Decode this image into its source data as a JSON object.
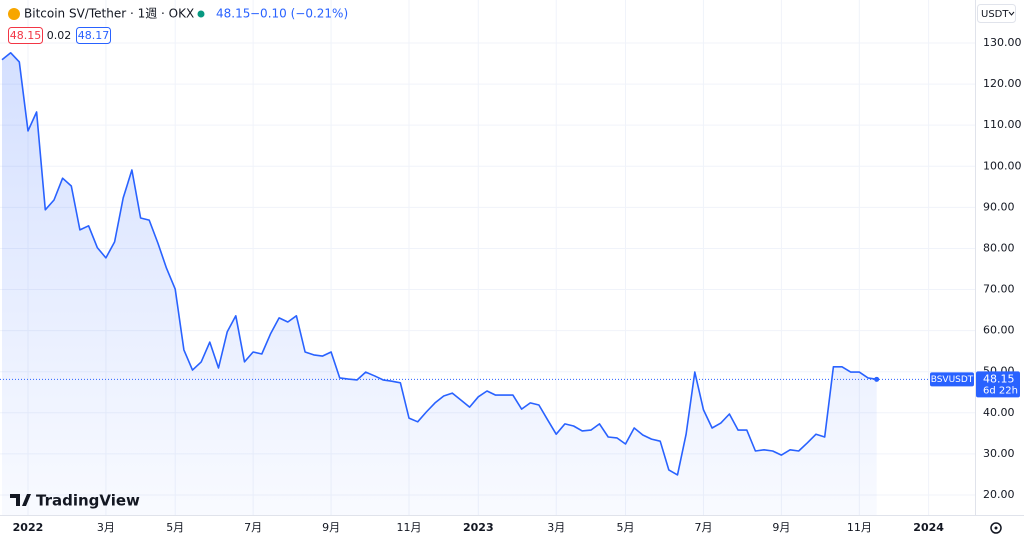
{
  "chart_data": {
    "type": "line",
    "title": "Bitcoin SV/Tether · 1週 · OKX",
    "header_price": "48.15",
    "header_change": "−0.10 (−0.21%)",
    "bid": "48.15",
    "spread": "0.02",
    "ask": "48.17",
    "currency": "USDT",
    "branding": "TradingView",
    "categories": [
      null,
      null,
      null,
      "2022",
      null,
      null,
      null,
      null,
      null,
      null,
      null,
      null,
      "3月",
      null,
      null,
      null,
      null,
      null,
      null,
      null,
      "5月",
      null,
      null,
      null,
      null,
      null,
      null,
      null,
      null,
      "7月",
      null,
      null,
      null,
      null,
      null,
      null,
      null,
      null,
      "9月",
      null,
      null,
      null,
      null,
      null,
      null,
      null,
      null,
      "11月",
      null,
      null,
      null,
      null,
      null,
      null,
      null,
      "2023",
      null,
      null,
      null,
      null,
      null,
      null,
      null,
      null,
      "3月",
      null,
      null,
      null,
      null,
      null,
      null,
      null,
      "5月",
      null,
      null,
      null,
      null,
      null,
      null,
      null,
      null,
      "7月",
      null,
      null,
      null,
      null,
      null,
      null,
      null,
      null,
      "9月",
      null,
      null,
      null,
      null,
      null,
      null,
      null,
      null,
      "11月",
      null,
      null,
      null,
      null,
      null,
      null,
      null,
      "2024"
    ],
    "series": [
      {
        "name": "BSVUSDT",
        "color": "#2962ff",
        "values": [
          125.9,
          127.6,
          125.4,
          108.6,
          113.2,
          89.4,
          91.8,
          97.1,
          95.2,
          84.5,
          85.5,
          80.2,
          77.7,
          81.6,
          92.3,
          99.1,
          87.4,
          86.9,
          81.3,
          75.2,
          70.1,
          55.3,
          50.4,
          52.4,
          57.2,
          50.9,
          59.7,
          63.6,
          52.4,
          54.8,
          54.3,
          59.2,
          63.1,
          62.1,
          63.6,
          54.8,
          54.1,
          53.8,
          54.8,
          48.5,
          48.2,
          48.0,
          49.9,
          49.0,
          48.0,
          47.7,
          47.3,
          38.7,
          37.8,
          40.2,
          42.4,
          44.1,
          44.8,
          43.1,
          41.4,
          43.9,
          45.3,
          44.3,
          44.3,
          44.3,
          40.9,
          42.4,
          41.9,
          38.3,
          34.8,
          37.3,
          36.8,
          35.6,
          35.8,
          37.3,
          34.1,
          33.9,
          32.4,
          36.3,
          34.6,
          33.6,
          33.1,
          26.1,
          24.9,
          34.8,
          49.9,
          40.7,
          36.3,
          37.5,
          39.7,
          35.8,
          35.8,
          30.7,
          31.0,
          30.7,
          29.7,
          31.0,
          30.7,
          32.7,
          34.8,
          34.1,
          51.2,
          51.2,
          49.9,
          49.9,
          48.5,
          48.15,
          null,
          null,
          null,
          null,
          null,
          null
        ]
      }
    ],
    "last_price": {
      "symbol": "BSVUSDT",
      "value": 48.15,
      "label": "48.15",
      "countdown": "6d 22h"
    },
    "ylim": [
      15.13,
      140.46
    ],
    "yticks": [
      {
        "value": 20,
        "label": "20.00"
      },
      {
        "value": 30,
        "label": "30.00"
      },
      {
        "value": 40,
        "label": "40.00"
      },
      {
        "value": 50,
        "label": "50.00"
      },
      {
        "value": 60,
        "label": "60.00"
      },
      {
        "value": 70,
        "label": "70.00"
      },
      {
        "value": 80,
        "label": "80.00"
      },
      {
        "value": 90,
        "label": "90.00"
      },
      {
        "value": 100,
        "label": "100.00"
      },
      {
        "value": 110,
        "label": "110.00"
      },
      {
        "value": 120,
        "label": "120.00"
      },
      {
        "value": 130,
        "label": "130.00"
      }
    ],
    "grid": true
  }
}
